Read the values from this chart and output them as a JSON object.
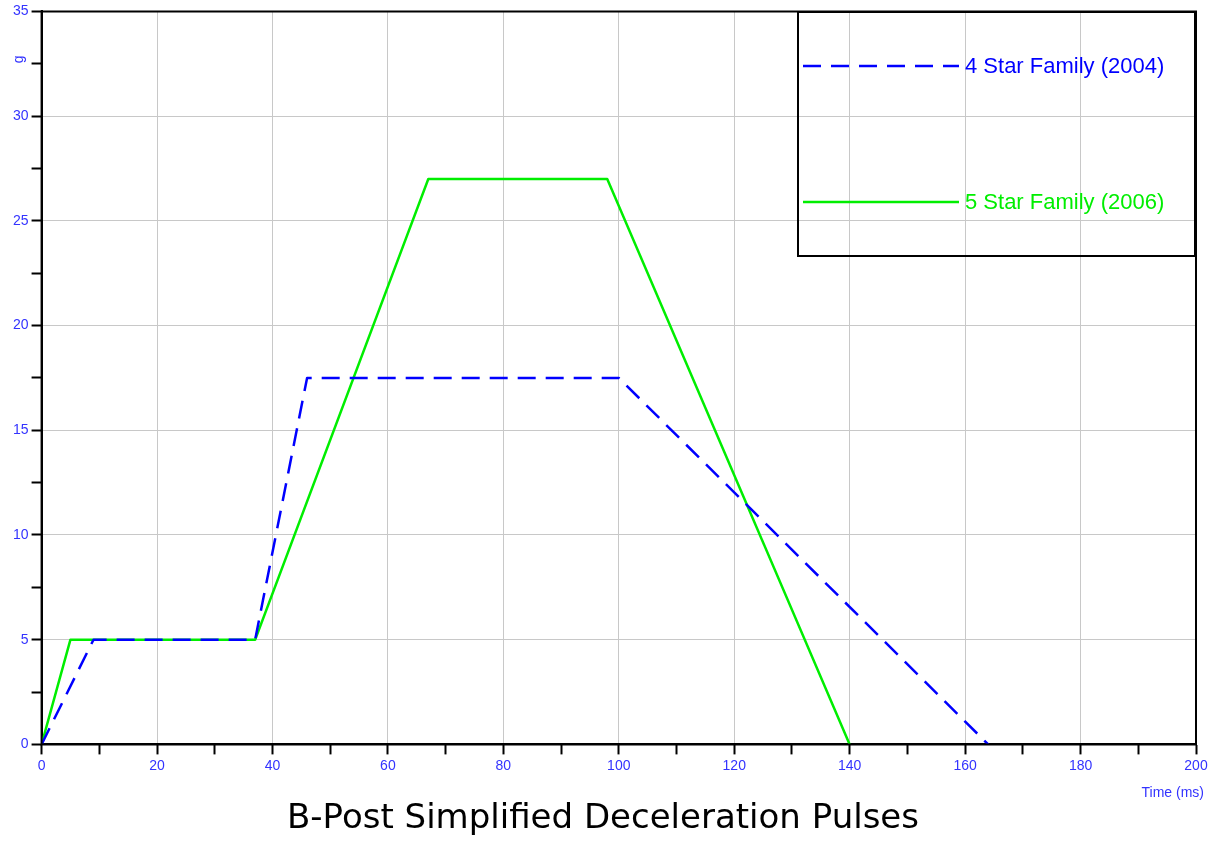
{
  "chart_data": {
    "type": "line",
    "title": "B-Post Simplified Deceleration Pulses",
    "xlabel": "Time (ms)",
    "ylabel": "g",
    "series": [
      {
        "name": "4 Star Family (2004)",
        "color": "#0000ff",
        "line_style": "dashed",
        "x": [
          0,
          9,
          37,
          46,
          100,
          164
        ],
        "values": [
          0,
          5,
          5,
          17.5,
          17.5,
          0
        ]
      },
      {
        "name": "5 Star Family (2006)",
        "color": "#00ee00",
        "line_style": "solid",
        "x": [
          0,
          5,
          37,
          67,
          98,
          140
        ],
        "values": [
          0,
          5,
          5,
          27,
          27,
          0
        ]
      }
    ],
    "xlim": [
      0,
      200
    ],
    "ylim": [
      0,
      35
    ],
    "xticks": [
      0,
      {
        "value": 10,
        "label": null
      },
      20,
      {
        "value": 30,
        "label": null
      },
      40,
      {
        "value": 50,
        "label": null
      },
      60,
      {
        "value": 70,
        "label": null
      },
      80,
      {
        "value": 90,
        "label": null
      },
      100,
      {
        "value": 110,
        "label": null
      },
      120,
      {
        "value": 130,
        "label": null
      },
      140,
      {
        "value": 150,
        "label": null
      },
      160,
      {
        "value": 170,
        "label": null
      },
      180,
      {
        "value": 190,
        "label": null
      },
      200
    ],
    "yticks": [
      0,
      {
        "value": 2.5,
        "label": null
      },
      5,
      {
        "value": 7.5,
        "label": null
      },
      10,
      {
        "value": 12.5,
        "label": null
      },
      15,
      {
        "value": 17.5,
        "label": null
      },
      20,
      {
        "value": 22.5,
        "label": null
      },
      25,
      {
        "value": 27.5,
        "label": null
      },
      30,
      {
        "value": 32.5,
        "label": null
      },
      35
    ],
    "grid": true,
    "legend": "top right",
    "marker": "none"
  }
}
